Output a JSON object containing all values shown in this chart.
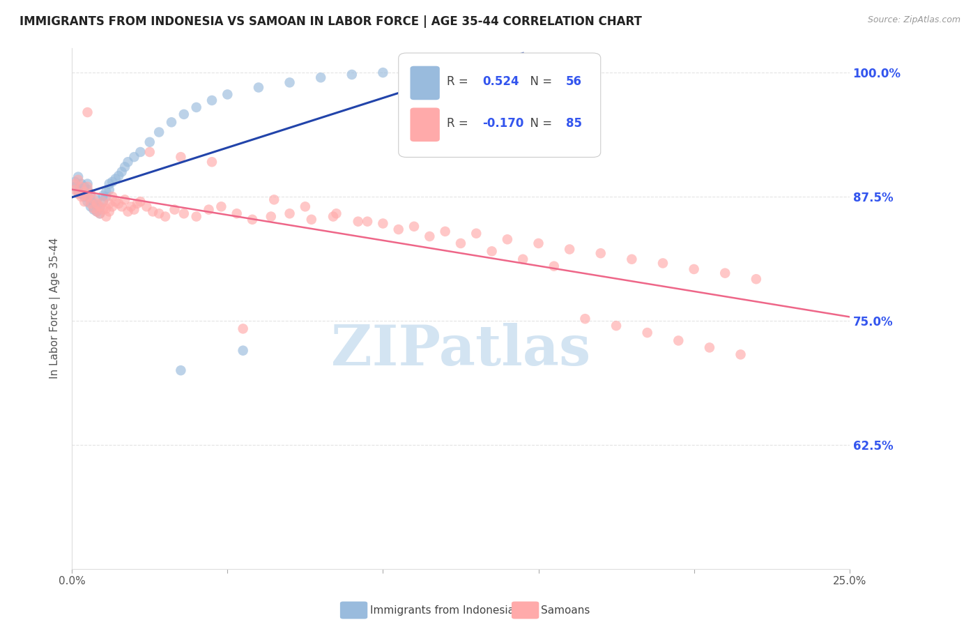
{
  "title": "IMMIGRANTS FROM INDONESIA VS SAMOAN IN LABOR FORCE | AGE 35-44 CORRELATION CHART",
  "source_text": "Source: ZipAtlas.com",
  "ylabel": "In Labor Force | Age 35-44",
  "watermark": "ZIPatlas",
  "xlim": [
    0.0,
    0.25
  ],
  "ylim": [
    0.5,
    1.025
  ],
  "yticks": [
    0.625,
    0.75,
    0.875,
    1.0
  ],
  "ytick_labels": [
    "62.5%",
    "75.0%",
    "87.5%",
    "100.0%"
  ],
  "xticks": [
    0.0,
    0.05,
    0.1,
    0.15,
    0.2,
    0.25
  ],
  "xtick_labels": [
    "0.0%",
    "",
    "",
    "",
    "",
    "25.0%"
  ],
  "blue_color": "#99BBDD",
  "pink_color": "#FFAAAA",
  "blue_line_color": "#2244AA",
  "pink_line_color": "#EE6688",
  "right_axis_color": "#3355EE",
  "grid_color": "#DDDDDD",
  "background_color": "#FFFFFF",
  "blue_r": "0.524",
  "blue_n": "56",
  "pink_r": "-0.170",
  "pink_n": "85",
  "legend_label_blue": "Immigrants from Indonesia",
  "legend_label_pink": "Samoans"
}
